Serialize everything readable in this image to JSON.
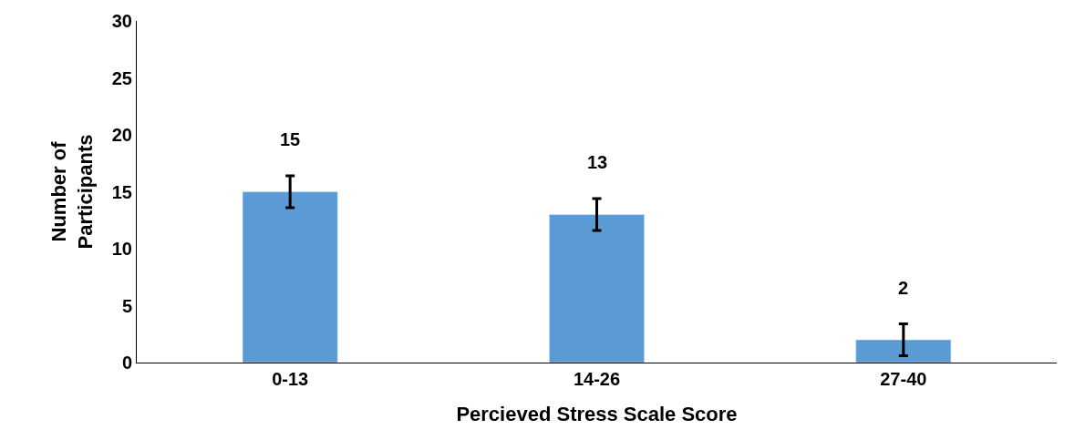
{
  "chart_data": {
    "type": "bar",
    "xlabel": "Percieved Stress Scale Score",
    "ylabel": "Number of Participants",
    "categories": [
      "0-13",
      "14-26",
      "27-40"
    ],
    "values": [
      15,
      13,
      2
    ],
    "errors": [
      1.4,
      1.4,
      1.4
    ],
    "color": "#5b9bd5",
    "ylim": [
      0,
      30
    ],
    "yticks": [
      0,
      5,
      10,
      15,
      20,
      25,
      30
    ],
    "data_labels": true
  }
}
